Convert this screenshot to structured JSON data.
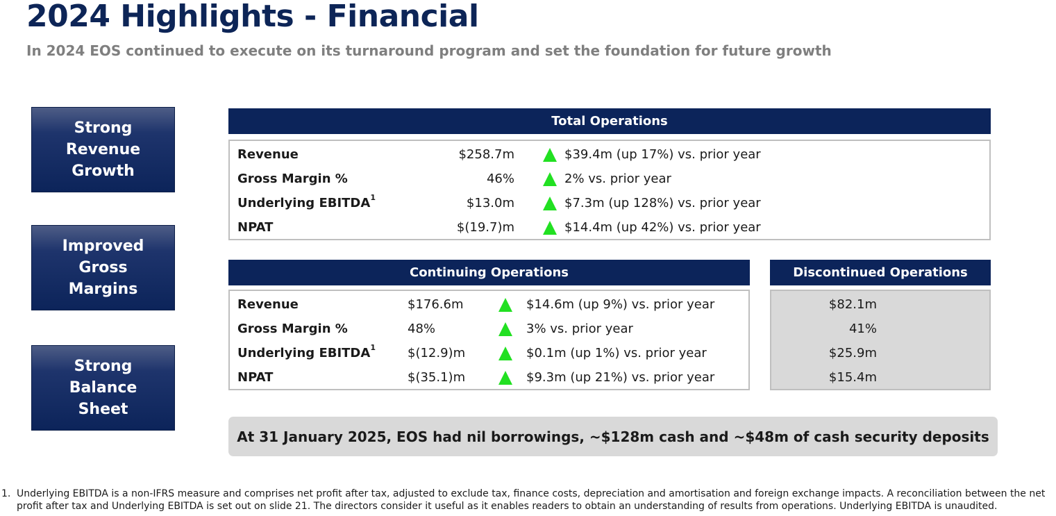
{
  "header": {
    "title": "2024 Highlights - Financial",
    "subtitle": "In 2024 EOS continued to execute on its turnaround program and set the foundation for future growth"
  },
  "pillars": [
    "Strong\nRevenue\nGrowth",
    "Improved\nGross\nMargins",
    "Strong\nBalance\nSheet"
  ],
  "total_operations": {
    "heading": "Total Operations",
    "rows": [
      {
        "label": "Revenue",
        "sup": "",
        "value": "$258.7m",
        "change": "$39.4m (up 17%) vs. prior year"
      },
      {
        "label": "Gross Margin %",
        "sup": "",
        "value": "46%",
        "change": "2% vs. prior year"
      },
      {
        "label": "Underlying EBITDA",
        "sup": "1",
        "value": "$13.0m",
        "change": "$7.3m (up 128%) vs. prior year"
      },
      {
        "label": "NPAT",
        "sup": "",
        "value": "$(19.7)m",
        "change": "$14.4m (up 42%) vs. prior year"
      }
    ]
  },
  "continuing_operations": {
    "heading": "Continuing Operations",
    "rows": [
      {
        "label": "Revenue",
        "sup": "",
        "value": "$176.6m",
        "change": "$14.6m (up 9%) vs. prior year"
      },
      {
        "label": "Gross Margin %",
        "sup": "",
        "value": "48%",
        "change": "3% vs. prior year"
      },
      {
        "label": "Underlying EBITDA",
        "sup": "1",
        "value": "$(12.9)m",
        "change": "$0.1m (up 1%) vs. prior year"
      },
      {
        "label": "NPAT",
        "sup": "",
        "value": "$(35.1)m",
        "change": "$9.3m (up 21%) vs. prior year"
      }
    ]
  },
  "discontinued_operations": {
    "heading": "Discontinued Operations",
    "values": [
      "$82.1m",
      "41%",
      "$25.9m",
      "$15.4m"
    ]
  },
  "callout": "At 31 January 2025, EOS had nil borrowings, ~$128m cash and ~$48m of cash security deposits",
  "footnote": {
    "number": "1.",
    "text": "Underlying EBITDA is a non-IFRS measure and comprises net profit after tax, adjusted to exclude tax, finance costs, depreciation and amortisation and foreign exchange impacts. A reconciliation between the net profit after tax and Underlying EBITDA is set out on slide 21. The directors consider it useful as it enables readers to obtain an understanding of results from operations. Underlying EBITDA is unaudited."
  },
  "colors": {
    "navy": "#0c245a",
    "up_arrow": "#22e022",
    "panel_grey": "#d9d9d9",
    "subtitle_grey": "#7f7f7f"
  },
  "icons": {
    "up_arrow": "up-arrow-icon"
  }
}
